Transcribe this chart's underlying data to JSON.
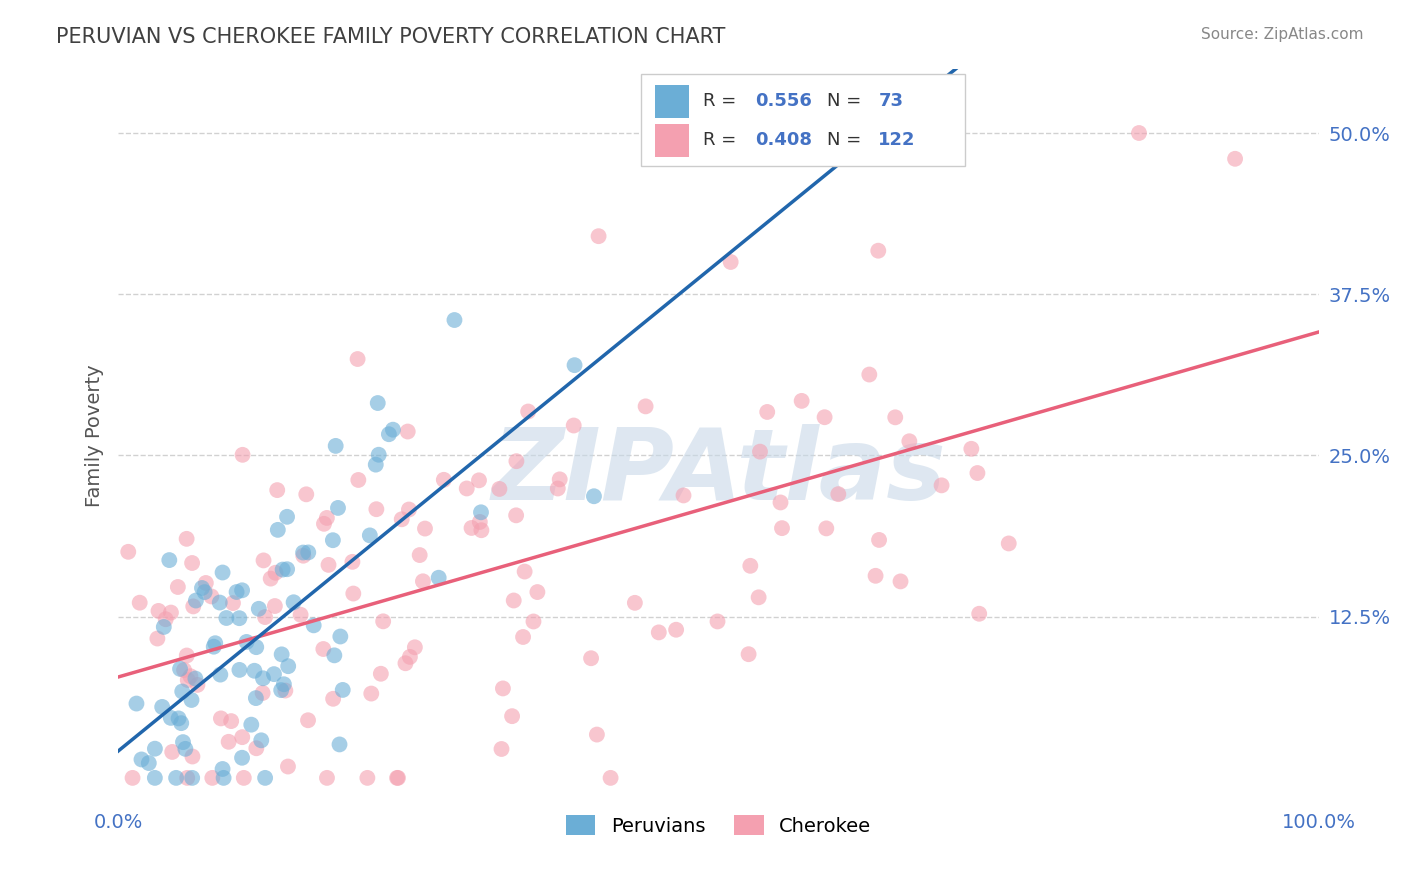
{
  "title": "PERUVIAN VS CHEROKEE FAMILY POVERTY CORRELATION CHART",
  "source": "Source: ZipAtlas.com",
  "xlabel": "",
  "ylabel": "Family Poverty",
  "xlim": [
    0,
    1.0
  ],
  "ylim": [
    -0.02,
    0.55
  ],
  "yticks": [
    0.125,
    0.25,
    0.375,
    0.5
  ],
  "ytick_labels": [
    "12.5%",
    "25.0%",
    "37.5%",
    "50.0%"
  ],
  "xticks": [
    0.0,
    1.0
  ],
  "xtick_labels": [
    "0.0%",
    "100.0%"
  ],
  "R_peruvian": 0.556,
  "N_peruvian": 73,
  "R_cherokee": 0.408,
  "N_cherokee": 122,
  "peruvian_color": "#6baed6",
  "cherokee_color": "#f4a0b0",
  "peruvian_line_color": "#2166ac",
  "cherokee_line_color": "#e8607a",
  "watermark": "ZIPAtlas",
  "watermark_color": "#c8d8e8",
  "legend_labels": [
    "Peruvians",
    "Cherokee"
  ],
  "background_color": "#ffffff",
  "grid_color": "#cccccc",
  "title_color": "#404040",
  "axis_label_color": "#555555",
  "tick_label_color": "#4472c4",
  "source_color": "#888888"
}
